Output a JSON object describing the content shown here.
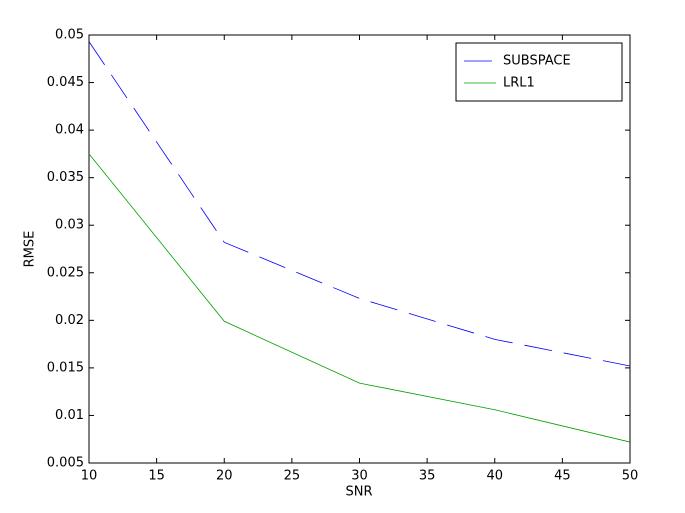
{
  "chart_data": {
    "type": "line",
    "x_label": "SNR",
    "y_label": "RMSE",
    "x": [
      10,
      20,
      30,
      40,
      50
    ],
    "series": [
      {
        "name": "SUBSPACE",
        "color": "#0000ff",
        "dashed": true,
        "values": [
          0.0493,
          0.0282,
          0.0223,
          0.018,
          0.0152
        ]
      },
      {
        "name": "LRL1",
        "color": "#00a000",
        "dashed": false,
        "values": [
          0.0375,
          0.0199,
          0.0134,
          0.0106,
          0.0072
        ]
      }
    ],
    "xlim": [
      10,
      50
    ],
    "xticks": [
      10,
      15,
      20,
      25,
      30,
      35,
      40,
      45,
      50
    ],
    "ylim": [
      0.005,
      0.05
    ],
    "yticks": [
      0.005,
      0.01,
      0.015,
      0.02,
      0.025,
      0.03,
      0.035,
      0.04,
      0.045,
      0.05
    ],
    "legend": "top-right",
    "grid": false
  }
}
